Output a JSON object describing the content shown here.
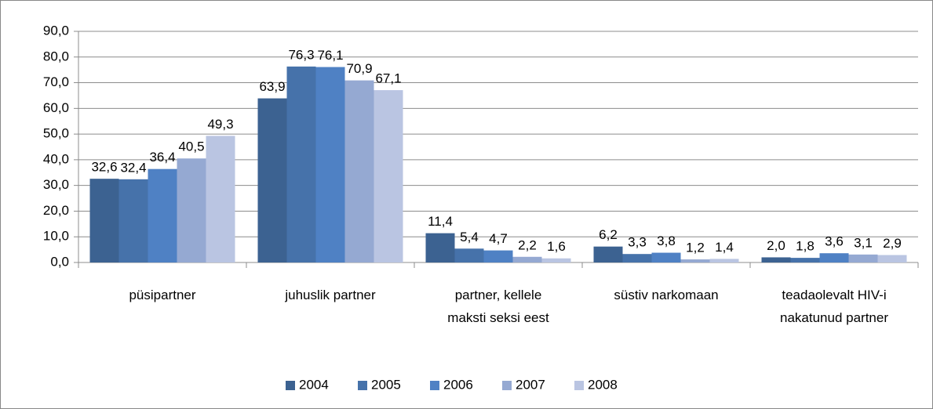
{
  "chart_data": {
    "type": "bar",
    "categories": [
      "püsipartner",
      "juhuslik partner",
      "partner, kellele\nmaksti seksi eest",
      "süstiv narkomaan",
      "teadaolevalt HIV-i\nnakatunud partner"
    ],
    "series": [
      {
        "name": "2004",
        "color": "#3c6291",
        "values": [
          32.6,
          63.9,
          11.4,
          6.2,
          2.0
        ],
        "value_labels": [
          "32,6",
          "63,9",
          "11,4",
          "6,2",
          "2,0"
        ]
      },
      {
        "name": "2005",
        "color": "#4672aa",
        "values": [
          32.4,
          76.3,
          5.4,
          3.3,
          1.8
        ],
        "value_labels": [
          "32,4",
          "76,3",
          "5,4",
          "3,3",
          "1,8"
        ]
      },
      {
        "name": "2006",
        "color": "#4f81c4",
        "values": [
          36.4,
          76.1,
          4.7,
          3.8,
          3.6
        ],
        "value_labels": [
          "36,4",
          "76,1",
          "4,7",
          "3,8",
          "3,6"
        ]
      },
      {
        "name": "2007",
        "color": "#95a9d2",
        "values": [
          40.5,
          70.9,
          2.2,
          1.2,
          3.1
        ],
        "value_labels": [
          "40,5",
          "70,9",
          "2,2",
          "1,2",
          "3,1"
        ]
      },
      {
        "name": "2008",
        "color": "#bac5e2",
        "values": [
          49.3,
          67.1,
          1.6,
          1.4,
          2.9
        ],
        "value_labels": [
          "49,3",
          "67,1",
          "1,6",
          "1,4",
          "2,9"
        ]
      }
    ],
    "ylim": [
      0,
      90
    ],
    "yticks": [
      {
        "value": 0,
        "label": "0,0"
      },
      {
        "value": 10,
        "label": "10,0"
      },
      {
        "value": 20,
        "label": "20,0"
      },
      {
        "value": 30,
        "label": "30,0"
      },
      {
        "value": 40,
        "label": "40,0"
      },
      {
        "value": 50,
        "label": "50,0"
      },
      {
        "value": 60,
        "label": "60,0"
      },
      {
        "value": 70,
        "label": "70,0"
      },
      {
        "value": 80,
        "label": "80,0"
      },
      {
        "value": 90,
        "label": "90,0"
      }
    ],
    "grid": true,
    "legend": "bottom"
  }
}
